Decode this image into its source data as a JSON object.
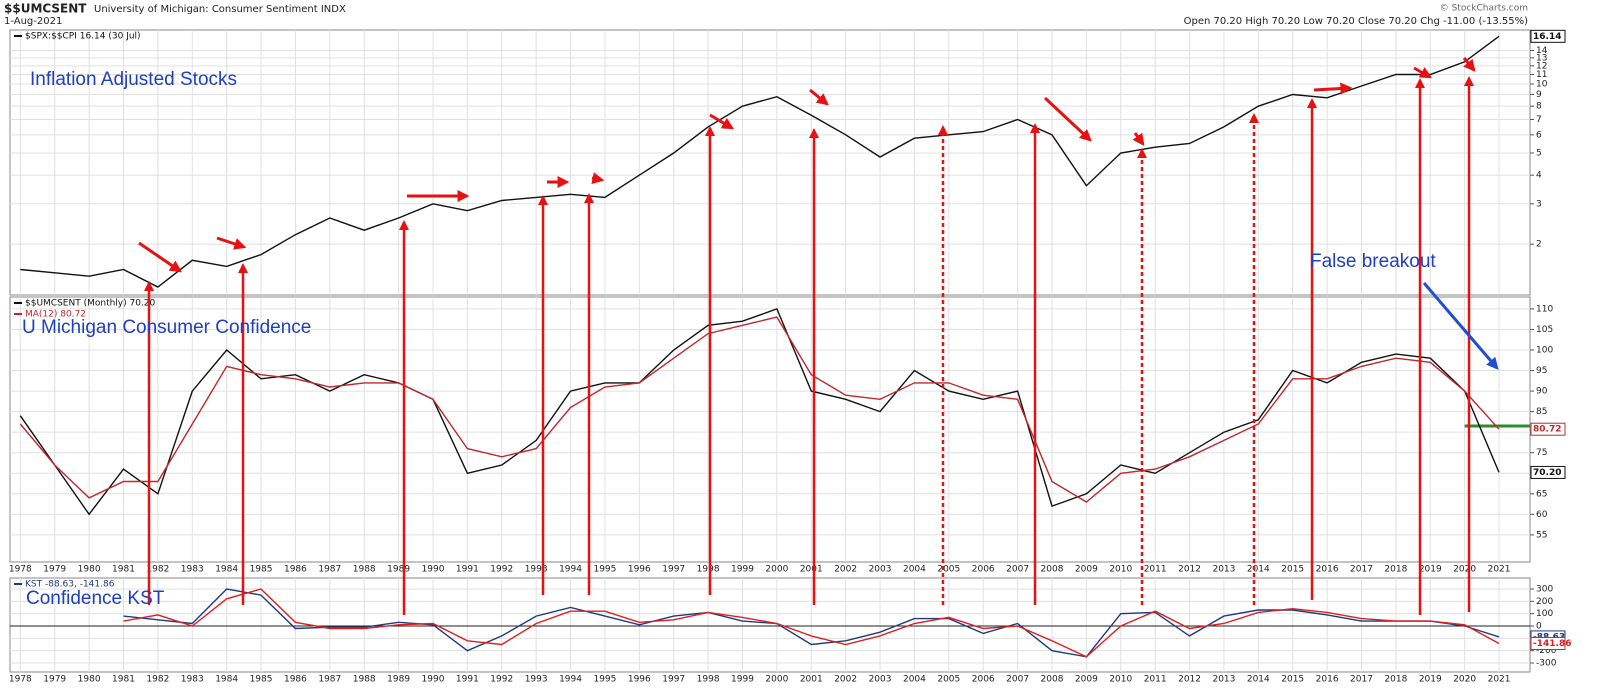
{
  "header": {
    "symbol": "$$UMCSENT",
    "description": "University of Michigan: Consumer Sentiment INDX",
    "date": "1-Aug-2021",
    "quote": "Open 70.20  High 70.20  Low 70.20  Close 70.20  Chg -11.00 (-13.55%)",
    "copyright": "© StockCharts.com"
  },
  "chart_data": [
    {
      "type": "line",
      "label": "Inflation Adjusted Stocks",
      "log": true,
      "grid": true,
      "x": [
        1978,
        1979,
        1980,
        1981,
        1982,
        1983,
        1984,
        1985,
        1986,
        1987,
        1988,
        1989,
        1990,
        1991,
        1992,
        1993,
        1994,
        1995,
        1996,
        1997,
        1998,
        1999,
        2000,
        2001,
        2002,
        2003,
        2004,
        2005,
        2006,
        2007,
        2008,
        2009,
        2010,
        2011,
        2012,
        2013,
        2014,
        2015,
        2016,
        2017,
        2018,
        2019,
        2020,
        2021
      ],
      "xlim": [
        1977.7,
        2021.9
      ],
      "ylim": [
        1.2,
        17.2
      ],
      "yticks": [
        2,
        3,
        4,
        5,
        6,
        7,
        8,
        9,
        10,
        11,
        12,
        13,
        14
      ],
      "series": [
        {
          "name": "$SPX:$$CPI 16.14 (30 Jul)",
          "color": "#111111",
          "end_label": "16.14",
          "values": [
            1.55,
            1.5,
            1.45,
            1.55,
            1.3,
            1.7,
            1.6,
            1.8,
            2.2,
            2.6,
            2.3,
            2.6,
            3.0,
            2.8,
            3.1,
            3.2,
            3.3,
            3.2,
            4.0,
            5.0,
            6.5,
            8.0,
            8.8,
            7.3,
            6.0,
            4.8,
            5.8,
            6.0,
            6.2,
            7.0,
            6.0,
            3.6,
            5.0,
            5.3,
            5.5,
            6.5,
            8.0,
            9.0,
            8.7,
            9.8,
            11.0,
            11.0,
            12.5,
            16.14
          ]
        }
      ]
    },
    {
      "type": "line",
      "label": "U Michigan Consumer Confidence",
      "annotation": "False breakout",
      "grid": true,
      "x": [
        1978,
        1979,
        1980,
        1981,
        1982,
        1983,
        1984,
        1985,
        1986,
        1987,
        1988,
        1989,
        1990,
        1991,
        1992,
        1993,
        1994,
        1995,
        1996,
        1997,
        1998,
        1999,
        2000,
        2001,
        2002,
        2003,
        2004,
        2005,
        2006,
        2007,
        2008,
        2009,
        2010,
        2011,
        2012,
        2013,
        2014,
        2015,
        2016,
        2017,
        2018,
        2019,
        2020,
        2021
      ],
      "xlim": [
        1977.7,
        2021.9
      ],
      "xticks": [
        1978,
        1979,
        1980,
        1981,
        1982,
        1983,
        1984,
        1985,
        1986,
        1987,
        1988,
        1989,
        1990,
        1991,
        1992,
        1993,
        1994,
        1995,
        1996,
        1997,
        1998,
        1999,
        2000,
        2001,
        2002,
        2003,
        2004,
        2005,
        2006,
        2007,
        2008,
        2009,
        2010,
        2011,
        2012,
        2013,
        2014,
        2015,
        2016,
        2017,
        2018,
        2019,
        2020,
        2021
      ],
      "ylim": [
        48.4,
        112.9
      ],
      "yticks": [
        55,
        60,
        65,
        70,
        75,
        80,
        85,
        90,
        95,
        100,
        105,
        110
      ],
      "reference_line": {
        "value": 81.5,
        "from": 2020,
        "color": "#2e8b2e"
      },
      "series": [
        {
          "name": "$$UMCSENT (Monthly) 70.20",
          "color": "#111111",
          "end_label": "70.20",
          "values": [
            84,
            72,
            60,
            71,
            65,
            90,
            100,
            93,
            94,
            90,
            94,
            92,
            88,
            70,
            72,
            78,
            90,
            92,
            92,
            100,
            106,
            107,
            110,
            90,
            88,
            85,
            95,
            90,
            88,
            90,
            62,
            65,
            72,
            70,
            75,
            80,
            83,
            95,
            92,
            97,
            99,
            98,
            90,
            70.2
          ]
        },
        {
          "name": "MA(12) 80.72",
          "color": "#c0282d",
          "end_label": "80.72",
          "values": [
            82,
            72,
            64,
            68,
            68,
            82,
            96,
            94,
            93,
            91,
            92,
            92,
            88,
            76,
            74,
            76,
            86,
            91,
            92,
            98,
            104,
            106,
            108,
            94,
            89,
            88,
            92,
            92,
            89,
            88,
            68,
            63,
            70,
            71,
            74,
            78,
            82,
            93,
            93,
            96,
            98,
            97,
            90,
            80.72
          ]
        }
      ]
    },
    {
      "type": "line",
      "label": "Confidence KST",
      "grid": true,
      "x": [
        1978,
        1979,
        1980,
        1981,
        1982,
        1983,
        1984,
        1985,
        1986,
        1987,
        1988,
        1989,
        1990,
        1991,
        1992,
        1993,
        1994,
        1995,
        1996,
        1997,
        1998,
        1999,
        2000,
        2001,
        2002,
        2003,
        2004,
        2005,
        2006,
        2007,
        2008,
        2009,
        2010,
        2011,
        2012,
        2013,
        2014,
        2015,
        2016,
        2017,
        2018,
        2019,
        2020,
        2021
      ],
      "xlim": [
        1977.7,
        2021.9
      ],
      "xticks": [
        1978,
        1979,
        1980,
        1981,
        1982,
        1983,
        1984,
        1985,
        1986,
        1987,
        1988,
        1989,
        1990,
        1991,
        1992,
        1993,
        1994,
        1995,
        1996,
        1997,
        1998,
        1999,
        2000,
        2001,
        2002,
        2003,
        2004,
        2005,
        2006,
        2007,
        2008,
        2009,
        2010,
        2011,
        2012,
        2013,
        2014,
        2015,
        2016,
        2017,
        2018,
        2019,
        2020,
        2021
      ],
      "ylim": [
        -373,
        389
      ],
      "yticks": [
        -300,
        -200,
        -100,
        0,
        100,
        200,
        300
      ],
      "series": [
        {
          "name": "KST -88.63, -141.86",
          "color": "#1f3a80",
          "end_label": "-88.63",
          "values": [
            null,
            null,
            null,
            80,
            50,
            20,
            300,
            250,
            -20,
            -10,
            -10,
            30,
            10,
            -200,
            -80,
            80,
            150,
            80,
            10,
            80,
            110,
            40,
            20,
            -150,
            -120,
            -50,
            60,
            60,
            -60,
            20,
            -200,
            -250,
            100,
            110,
            -80,
            80,
            130,
            130,
            90,
            40,
            40,
            40,
            0,
            -88.63
          ]
        },
        {
          "color": "#e02020",
          "end_label": "-141.86",
          "values": [
            null,
            null,
            null,
            40,
            90,
            0,
            220,
            300,
            30,
            -20,
            -20,
            10,
            20,
            -120,
            -150,
            20,
            120,
            120,
            30,
            50,
            110,
            70,
            20,
            -80,
            -150,
            -80,
            20,
            70,
            -20,
            0,
            -120,
            -250,
            0,
            120,
            -20,
            20,
            110,
            140,
            110,
            60,
            40,
            40,
            10,
            -141.86
          ]
        }
      ]
    }
  ]
}
